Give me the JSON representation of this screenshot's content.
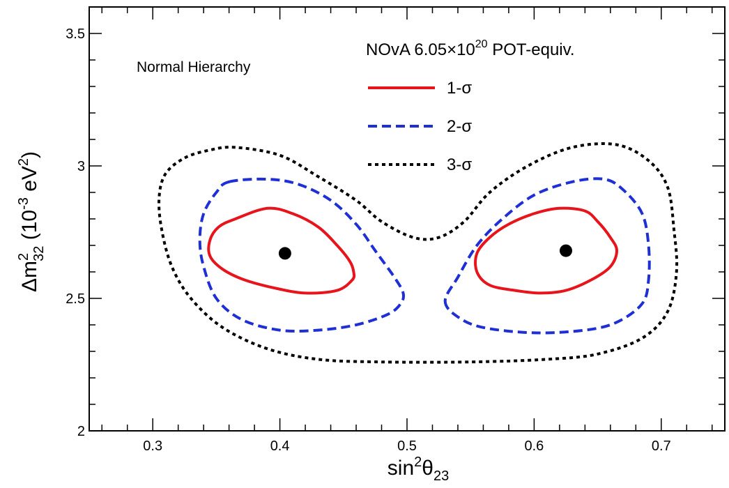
{
  "chart_data": {
    "type": "contour",
    "header": {
      "prefix": "NOvA 6.05×10",
      "exponent": "20",
      "suffix": " POT-equiv."
    },
    "annotation": "Normal Hierarchy",
    "xlabel": {
      "base": "sin",
      "sup": "2",
      "sym": "θ",
      "sub": "23"
    },
    "ylabel": {
      "delta": "Δm",
      "sup": "2",
      "sub": "32",
      "units_open": " (10",
      "units_exp": "-3",
      "units_mid": " eV",
      "units_exp2": "2",
      "units_close": ")"
    },
    "xlim": [
      0.25,
      0.75
    ],
    "ylim": [
      2.0,
      3.6
    ],
    "x_ticks": [
      {
        "value": 0.3,
        "label": "0.3"
      },
      {
        "value": 0.4,
        "label": "0.4"
      },
      {
        "value": 0.5,
        "label": "0.5"
      },
      {
        "value": 0.6,
        "label": "0.6"
      },
      {
        "value": 0.7,
        "label": "0.7"
      }
    ],
    "y_ticks": [
      {
        "value": 2.0,
        "label": "2"
      },
      {
        "value": 2.5,
        "label": "2.5"
      },
      {
        "value": 3.0,
        "label": "3"
      },
      {
        "value": 3.5,
        "label": "3.5"
      }
    ],
    "legend": {
      "position": "top-right",
      "entries": [
        {
          "label": "1-σ",
          "color": "#e8141c",
          "dash": "solid"
        },
        {
          "label": "2-σ",
          "color": "#1f2fd6",
          "dash": "dashed"
        },
        {
          "label": "3-σ",
          "color": "#000000",
          "dash": "dotted"
        }
      ]
    },
    "best_fit_points": [
      {
        "x": 0.404,
        "y": 2.67
      },
      {
        "x": 0.625,
        "y": 2.68
      }
    ],
    "series": [
      {
        "name": "1-σ",
        "color": "#e8141c",
        "dash": "solid",
        "contours": [
          [
            [
              0.365,
              2.8
            ],
            [
              0.39,
              2.84
            ],
            [
              0.41,
              2.82
            ],
            [
              0.43,
              2.77
            ],
            [
              0.445,
              2.7
            ],
            [
              0.455,
              2.64
            ],
            [
              0.458,
              2.6
            ],
            [
              0.457,
              2.57
            ],
            [
              0.445,
              2.53
            ],
            [
              0.42,
              2.52
            ],
            [
              0.395,
              2.54
            ],
            [
              0.372,
              2.57
            ],
            [
              0.355,
              2.61
            ],
            [
              0.345,
              2.66
            ],
            [
              0.345,
              2.72
            ],
            [
              0.352,
              2.77
            ],
            [
              0.365,
              2.8
            ]
          ],
          [
            [
              0.585,
              2.53
            ],
            [
              0.605,
              2.52
            ],
            [
              0.625,
              2.53
            ],
            [
              0.645,
              2.57
            ],
            [
              0.66,
              2.62
            ],
            [
              0.665,
              2.68
            ],
            [
              0.66,
              2.73
            ],
            [
              0.65,
              2.79
            ],
            [
              0.64,
              2.83
            ],
            [
              0.62,
              2.84
            ],
            [
              0.6,
              2.82
            ],
            [
              0.58,
              2.78
            ],
            [
              0.565,
              2.73
            ],
            [
              0.555,
              2.67
            ],
            [
              0.555,
              2.6
            ],
            [
              0.565,
              2.55
            ],
            [
              0.585,
              2.53
            ]
          ]
        ]
      },
      {
        "name": "2-σ",
        "color": "#1f2fd6",
        "dash": "dashed",
        "contours": [
          [
            [
              0.36,
              2.94
            ],
            [
              0.39,
              2.95
            ],
            [
              0.415,
              2.93
            ],
            [
              0.44,
              2.87
            ],
            [
              0.46,
              2.78
            ],
            [
              0.475,
              2.68
            ],
            [
              0.49,
              2.58
            ],
            [
              0.497,
              2.52
            ],
            [
              0.495,
              2.48
            ],
            [
              0.485,
              2.44
            ],
            [
              0.46,
              2.4
            ],
            [
              0.43,
              2.38
            ],
            [
              0.4,
              2.38
            ],
            [
              0.37,
              2.42
            ],
            [
              0.35,
              2.5
            ],
            [
              0.34,
              2.62
            ],
            [
              0.337,
              2.72
            ],
            [
              0.34,
              2.82
            ],
            [
              0.35,
              2.9
            ],
            [
              0.36,
              2.94
            ]
          ],
          [
            [
              0.53,
              2.49
            ],
            [
              0.54,
              2.43
            ],
            [
              0.56,
              2.39
            ],
            [
              0.6,
              2.37
            ],
            [
              0.64,
              2.38
            ],
            [
              0.665,
              2.41
            ],
            [
              0.685,
              2.48
            ],
            [
              0.69,
              2.57
            ],
            [
              0.69,
              2.7
            ],
            [
              0.685,
              2.82
            ],
            [
              0.67,
              2.91
            ],
            [
              0.655,
              2.95
            ],
            [
              0.63,
              2.94
            ],
            [
              0.6,
              2.89
            ],
            [
              0.575,
              2.8
            ],
            [
              0.555,
              2.7
            ],
            [
              0.54,
              2.58
            ],
            [
              0.53,
              2.49
            ]
          ]
        ]
      },
      {
        "name": "3-σ",
        "color": "#000000",
        "dash": "dotted",
        "contours": [
          [
            [
              0.365,
              3.07
            ],
            [
              0.345,
              3.06
            ],
            [
              0.325,
              3.03
            ],
            [
              0.31,
              2.97
            ],
            [
              0.305,
              2.88
            ],
            [
              0.307,
              2.76
            ],
            [
              0.315,
              2.62
            ],
            [
              0.33,
              2.5
            ],
            [
              0.355,
              2.39
            ],
            [
              0.39,
              2.31
            ],
            [
              0.43,
              2.27
            ],
            [
              0.48,
              2.26
            ],
            [
              0.55,
              2.26
            ],
            [
              0.61,
              2.27
            ],
            [
              0.65,
              2.29
            ],
            [
              0.685,
              2.35
            ],
            [
              0.705,
              2.45
            ],
            [
              0.712,
              2.6
            ],
            [
              0.71,
              2.76
            ],
            [
              0.705,
              2.92
            ],
            [
              0.69,
              3.02
            ],
            [
              0.665,
              3.08
            ],
            [
              0.63,
              3.07
            ],
            [
              0.595,
              3.0
            ],
            [
              0.565,
              2.9
            ],
            [
              0.545,
              2.79
            ],
            [
              0.525,
              2.73
            ],
            [
              0.505,
              2.73
            ],
            [
              0.48,
              2.79
            ],
            [
              0.46,
              2.87
            ],
            [
              0.43,
              2.96
            ],
            [
              0.4,
              3.04
            ],
            [
              0.365,
              3.07
            ]
          ]
        ]
      }
    ]
  }
}
